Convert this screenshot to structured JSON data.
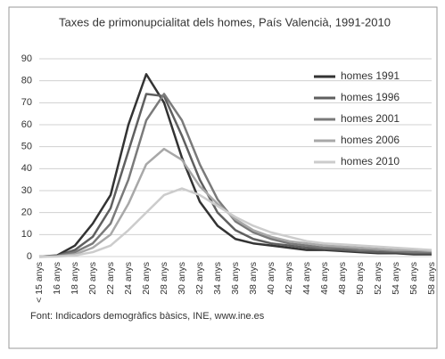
{
  "chart_data": {
    "type": "line",
    "title": "Taxes de primonupcialitat dels homes, País Valencià, 1991-2010",
    "categories": [
      "< 15 anys",
      "16 anys",
      "18 anys",
      "20 anys",
      "22 anys",
      "24 anys",
      "26 anys",
      "28 anys",
      "30 anys",
      "32 anys",
      "34 anys",
      "36 anys",
      "38 anys",
      "40 anys",
      "42 anys",
      "44 anys",
      "46 anys",
      "48 anys",
      "50 anys",
      "52 anys",
      "54 anys",
      "56 anys",
      "58 anys"
    ],
    "series": [
      {
        "name": "homes 1991",
        "color": "#333333",
        "values": [
          0,
          0.5,
          5,
          15,
          28,
          60,
          83,
          70,
          45,
          25,
          14,
          8,
          6,
          5,
          4,
          3,
          3,
          2.5,
          2,
          1.5,
          1.5,
          1,
          1
        ]
      },
      {
        "name": "homes 1996",
        "color": "#5f5f5f",
        "values": [
          0,
          0.3,
          3,
          9,
          22,
          48,
          74,
          73,
          55,
          35,
          20,
          12,
          8,
          6,
          5,
          4,
          3.5,
          3,
          2.5,
          2,
          2,
          1.5,
          1.5
        ]
      },
      {
        "name": "homes 2001",
        "color": "#7a7a7a",
        "values": [
          0,
          0.2,
          2,
          6,
          15,
          35,
          62,
          74,
          62,
          42,
          26,
          16,
          11,
          8,
          6,
          5,
          4,
          4,
          3,
          3,
          2.5,
          2,
          2
        ]
      },
      {
        "name": "homes 2006",
        "color": "#a8a8a8",
        "values": [
          0,
          0.1,
          1,
          4,
          10,
          24,
          42,
          49,
          44,
          32,
          24,
          17,
          12,
          9,
          7,
          6,
          5,
          4.5,
          4,
          3.5,
          3,
          3,
          2.5
        ]
      },
      {
        "name": "homes 2010",
        "color": "#cccccc",
        "values": [
          0,
          0,
          0.5,
          2,
          5,
          12,
          20,
          28,
          31,
          28,
          23,
          18,
          14,
          11,
          9,
          7,
          6,
          5.5,
          5,
          4.5,
          4,
          3.5,
          3
        ]
      }
    ],
    "ylim": [
      0,
      90
    ],
    "yticks": [
      0,
      10,
      20,
      30,
      40,
      50,
      60,
      70,
      80,
      90
    ],
    "grid": true,
    "source": "Font:  Indicadors demogràfics bàsics, INE, www.ine.es"
  }
}
